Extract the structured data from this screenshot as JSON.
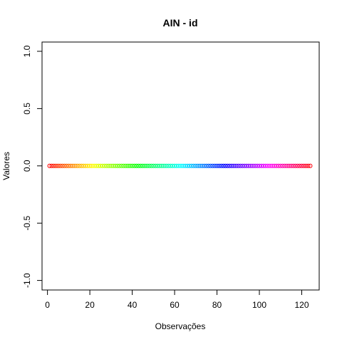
{
  "chart_data": {
    "type": "scatter",
    "title": "AIN - id",
    "xlabel": "Observações",
    "ylabel": "Valores",
    "xlim": [
      1,
      124
    ],
    "ylim": [
      -1.0,
      1.0
    ],
    "x_ticks": [
      0,
      20,
      40,
      60,
      80,
      100,
      120
    ],
    "x_tick_labels": [
      "0",
      "20",
      "40",
      "60",
      "80",
      "100",
      "120"
    ],
    "y_ticks": [
      -1.0,
      -0.5,
      0.0,
      0.5,
      1.0
    ],
    "y_tick_labels": [
      "-1.0",
      "-0.5",
      "0.0",
      "0.5",
      "1.0"
    ],
    "grid": false,
    "marker": "open-circle",
    "color_scheme": "rainbow",
    "series": [
      {
        "x_start": 1,
        "x_end": 124,
        "y_constant": 0.0
      }
    ]
  }
}
